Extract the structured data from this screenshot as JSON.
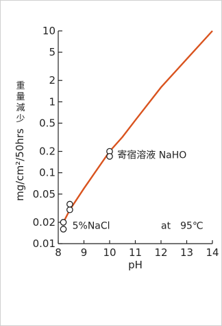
{
  "chart_data": {
    "type": "line",
    "xlabel": "pH",
    "ylabel_jp": "重量減少",
    "ylabel_unit": "mg/cm²/50hrs",
    "y_scale": "log",
    "xlim": [
      8,
      14
    ],
    "ylim": [
      0.01,
      10
    ],
    "x_ticks": [
      "8",
      "9",
      "10",
      "11",
      "12",
      "13",
      "14"
    ],
    "x_tick_values": [
      8,
      9,
      10,
      11,
      12,
      13,
      14
    ],
    "y_ticks": [
      "0.01",
      "0.02",
      "0.05",
      "0.1",
      "0.2",
      "0.5",
      "1",
      "2",
      "5",
      "10"
    ],
    "y_tick_values": [
      0.01,
      0.02,
      0.05,
      0.1,
      0.2,
      0.5,
      1,
      2,
      5,
      10
    ],
    "series": [
      {
        "x": [
          8.2,
          8.45,
          9.0,
          9.5,
          10.0,
          10.5,
          11.0,
          12.0,
          13.0,
          14.0
        ],
        "y": [
          0.02,
          0.03,
          0.06,
          0.11,
          0.2,
          0.32,
          0.55,
          1.6,
          4.0,
          10.0
        ],
        "color": "#d9531e"
      }
    ],
    "points": [
      {
        "x": 8.2,
        "y": 0.02
      },
      {
        "x": 8.2,
        "y": 0.016
      },
      {
        "x": 8.45,
        "y": 0.03
      },
      {
        "x": 8.45,
        "y": 0.036
      },
      {
        "x": 10.0,
        "y": 0.2
      },
      {
        "x": 10.0,
        "y": 0.17
      }
    ],
    "annotations": [
      {
        "text": "5%NaCl",
        "x": 8.55,
        "y": 0.018
      },
      {
        "text": "寄宿溶液 NaHO",
        "x": 10.3,
        "y": 0.18
      },
      {
        "text": "at　95℃",
        "x": 12.0,
        "y": 0.018
      }
    ]
  }
}
